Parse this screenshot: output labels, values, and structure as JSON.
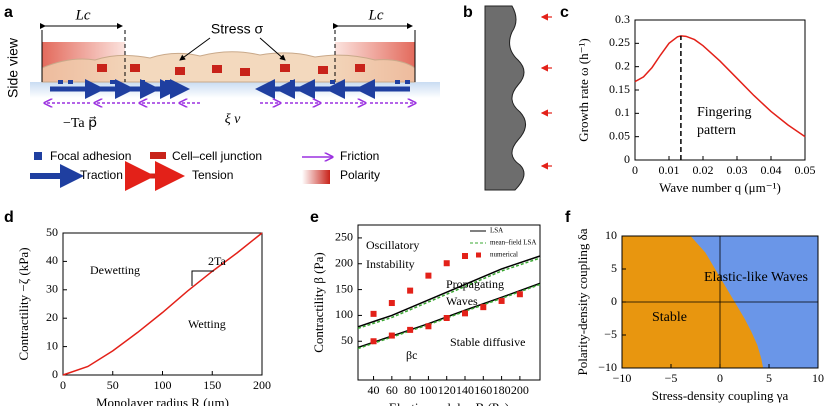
{
  "panel_labels": [
    "a",
    "b",
    "c",
    "d",
    "e",
    "f"
  ],
  "diagram": {
    "side_view": "Side view",
    "lc_left": "Lc",
    "lc_right": "Lc",
    "stress": "Stress σ",
    "traction_term": "−Ta p⃗",
    "friction_term": "ξ v⃗",
    "legend": [
      "Focal adhesion",
      "Cell–cell junction",
      "Friction",
      "Traction",
      "Tension",
      "Polarity"
    ]
  },
  "chart_data": [
    {
      "type": "line",
      "xlabel": "Wave number  q (μm⁻¹)",
      "ylabel": "Growth rate  ω (h⁻¹)",
      "xlim": [
        0,
        0.05
      ],
      "ylim": [
        0,
        0.3
      ],
      "xticks": [
        0,
        0.01,
        0.02,
        0.03,
        0.04,
        0.05
      ],
      "yticks": [
        0,
        0.05,
        0.1,
        0.15,
        0.2,
        0.25,
        0.3
      ],
      "annotations": [
        "Fingering",
        "pattern"
      ],
      "series": [
        {
          "color": "#e32119",
          "x": [
            0,
            0.0025,
            0.005,
            0.0075,
            0.01,
            0.0125,
            0.0135,
            0.015,
            0.0175,
            0.02,
            0.025,
            0.03,
            0.035,
            0.04,
            0.045,
            0.05
          ],
          "values": [
            0.168,
            0.178,
            0.198,
            0.225,
            0.25,
            0.264,
            0.266,
            0.265,
            0.258,
            0.245,
            0.212,
            0.175,
            0.138,
            0.104,
            0.075,
            0.05
          ]
        },
        {
          "color": "#000000",
          "dash": true,
          "x": [
            0.0135,
            0.0135
          ],
          "values": [
            0,
            0.266
          ]
        }
      ]
    },
    {
      "type": "line",
      "xlabel": "Monolayer radius  R (μm)",
      "ylabel": "Contractility   −ζ (kPa)",
      "xlim": [
        0,
        200
      ],
      "ylim": [
        0,
        50
      ],
      "xticks": [
        0,
        50,
        100,
        150,
        200
      ],
      "yticks": [
        0,
        10,
        20,
        30,
        40,
        50
      ],
      "annotations": [
        "Dewetting",
        "Wetting",
        "2Ta"
      ],
      "series": [
        {
          "color": "#e32119",
          "x": [
            0,
            25,
            50,
            75,
            100,
            125,
            150,
            175,
            200
          ],
          "values": [
            0,
            3,
            8.5,
            15,
            22,
            29.5,
            36.5,
            43,
            50
          ]
        }
      ]
    },
    {
      "type": "line",
      "xlabel": "Elastic modulus B (Pa)",
      "ylabel": "Contractility  β (Pa)",
      "xlim": [
        23,
        222
      ],
      "ylim": [
        -25,
        275
      ],
      "xticks": [
        40,
        60,
        80,
        100,
        120,
        140,
        160,
        180,
        200
      ],
      "yticks": [
        50,
        100,
        150,
        200,
        250
      ],
      "annotations": [
        "Oscillatory",
        "Instability",
        "Propagating",
        "Waves",
        "Stable diffusive",
        "βc"
      ],
      "series": [
        {
          "name": "LSA",
          "color": "#000000",
          "x": [
            23,
            60,
            100,
            140,
            180,
            222
          ],
          "values": [
            78,
            100,
            130,
            160,
            190,
            215
          ]
        },
        {
          "color": "#000000",
          "x": [
            23,
            60,
            100,
            140,
            180,
            222
          ],
          "values": [
            38,
            60,
            84,
            110,
            135,
            162
          ]
        },
        {
          "name": "mean–field LSA",
          "color": "#3aa832",
          "dash": true,
          "x": [
            23,
            60,
            100,
            140,
            180,
            222
          ],
          "values": [
            75,
            96,
            126,
            156,
            186,
            211
          ]
        },
        {
          "color": "#3aa832",
          "dash": true,
          "x": [
            23,
            60,
            100,
            140,
            180,
            222
          ],
          "values": [
            36,
            58,
            82,
            108,
            133,
            160
          ]
        },
        {
          "name": "numerical",
          "color": "#e32119",
          "marker": "square",
          "x": [
            40,
            60,
            80,
            100,
            120,
            140,
            40,
            60,
            80,
            100,
            120,
            140,
            160,
            180,
            200
          ],
          "values": [
            103,
            124,
            148,
            177,
            201,
            215,
            50,
            61,
            72,
            79,
            95,
            104,
            116,
            128,
            141
          ]
        }
      ]
    },
    {
      "type": "region",
      "xlabel": "Stress-density coupling  γa",
      "ylabel": "Polarity-density coupling  δa",
      "xlim": [
        -10,
        10
      ],
      "ylim": [
        -10,
        10
      ],
      "xticks": [
        {
          "value": -10,
          "label": "−10"
        },
        {
          "value": -5,
          "label": "−5"
        },
        0,
        5,
        10
      ],
      "yticks": [
        {
          "value": -10,
          "label": "−10"
        },
        {
          "value": -5,
          "label": "−5"
        },
        0,
        5,
        10
      ],
      "zero_lines": true,
      "regions": [
        {
          "name": "Stable",
          "color": "#e8960f"
        },
        {
          "name": "Elastic-like Waves",
          "color": "#6a96e8"
        }
      ],
      "boundary": {
        "x": [
          -3,
          -1.5,
          -0.5,
          0.5,
          1.5,
          2.5,
          3.2,
          3.8,
          4.2,
          4.4
        ],
        "values": [
          10,
          7.5,
          5,
          2.5,
          0,
          -2.5,
          -4.5,
          -6.5,
          -8.5,
          -10
        ]
      }
    }
  ]
}
